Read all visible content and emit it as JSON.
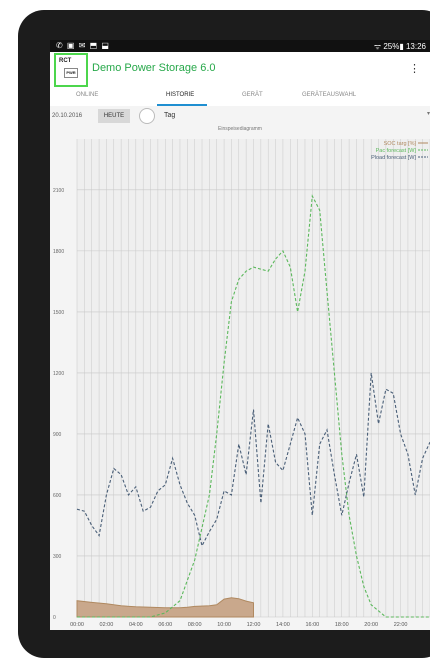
{
  "statusbar": {
    "icons": "✆ ▣ ✉ ⬒ ⬓",
    "right": "ᯤ 25%▮ 13:26"
  },
  "app": {
    "logo_text": "RCT",
    "logo_sub": "PWR",
    "title": "Demo Power Storage 6.0",
    "menu_icon": "⋮"
  },
  "tabs": [
    "ONLINE",
    "HISTORIE",
    "GERÄT",
    "GERÄTEAUSWAHL"
  ],
  "toolbar": {
    "date": "20.10.2016",
    "today": "HEUTE",
    "period": "Tag",
    "caret": "▾"
  },
  "chart_data": {
    "type": "line",
    "title": "Einspeisediagramm",
    "x_labels": [
      "00:00",
      "02:00",
      "04:00",
      "06:00",
      "08:00",
      "10:00",
      "12:00",
      "14:00",
      "16:00",
      "18:00",
      "20:00",
      "22:00"
    ],
    "y_ticks": [
      0,
      300,
      600,
      900,
      1200,
      1500,
      1800,
      2100
    ],
    "ylim": [
      0,
      2350
    ],
    "xlim": [
      0,
      24
    ],
    "grid": true,
    "legend_position": "top-right",
    "colors": {
      "soc": "#b08960",
      "soc_fill": "#c9a88c",
      "pac": "#5cb85c",
      "pload": "#4a5f78"
    },
    "series": [
      {
        "name": "SOC targ [%]",
        "color": "#b08960",
        "style": "area",
        "x": [
          0,
          1,
          2,
          3,
          4,
          5,
          6,
          7,
          7.5,
          8,
          9,
          9.5,
          10,
          10.5,
          11,
          11.5,
          12
        ],
        "values": [
          80,
          72,
          65,
          55,
          50,
          48,
          45,
          45,
          48,
          52,
          55,
          60,
          88,
          95,
          90,
          78,
          70
        ]
      },
      {
        "name": "Pac forecast [W]",
        "color": "#5cb85c",
        "style": "dashed",
        "x": [
          0,
          5,
          6,
          7,
          8,
          9,
          9.5,
          10,
          10.5,
          11,
          11.5,
          12,
          12.5,
          13,
          13.5,
          14,
          14.5,
          15,
          15.5,
          16,
          16.5,
          17,
          17.5,
          18,
          18.5,
          19,
          19.5,
          20,
          21,
          22,
          24
        ],
        "values": [
          0,
          0,
          20,
          80,
          280,
          600,
          900,
          1250,
          1550,
          1660,
          1700,
          1720,
          1710,
          1700,
          1760,
          1800,
          1720,
          1500,
          1700,
          2070,
          2000,
          1600,
          1200,
          800,
          500,
          300,
          150,
          60,
          0,
          0,
          0
        ]
      },
      {
        "name": "Pload forecast [W]",
        "color": "#4a5f78",
        "style": "dashed",
        "x": [
          0,
          0.5,
          1,
          1.5,
          2,
          2.5,
          3,
          3.5,
          4,
          4.5,
          5,
          5.5,
          6,
          6.5,
          7,
          7.5,
          8,
          8.5,
          9,
          9.5,
          10,
          10.5,
          11,
          11.5,
          12,
          12.5,
          13,
          13.5,
          14,
          14.5,
          15,
          15.5,
          16,
          16.5,
          17,
          17.5,
          18,
          18.5,
          19,
          19.5,
          20,
          20.5,
          21,
          21.5,
          22,
          22.5,
          23,
          23.5,
          24
        ],
        "values": [
          530,
          520,
          450,
          400,
          600,
          730,
          700,
          600,
          640,
          520,
          540,
          620,
          650,
          780,
          650,
          560,
          500,
          350,
          420,
          480,
          620,
          600,
          850,
          700,
          1020,
          560,
          950,
          760,
          720,
          850,
          980,
          900,
          500,
          850,
          920,
          700,
          500,
          660,
          800,
          590,
          1200,
          950,
          1120,
          1100,
          900,
          800,
          600,
          780,
          860
        ]
      }
    ]
  }
}
